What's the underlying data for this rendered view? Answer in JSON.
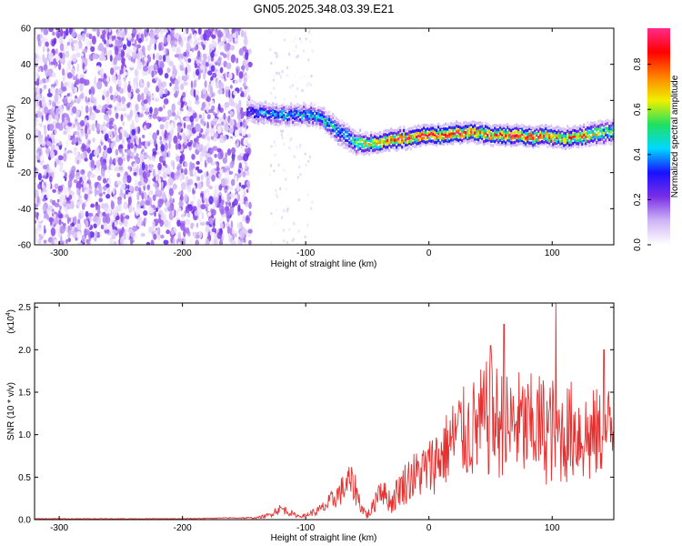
{
  "title": "GN05.2025.348.03.39.E21",
  "chart_data": [
    {
      "type": "heatmap",
      "xlabel": "Height of straight line (km)",
      "ylabel": "Frequency (Hz)",
      "xlim": [
        -320,
        150
      ],
      "ylim": [
        -60,
        60
      ],
      "x_ticks": [
        -300,
        -200,
        -100,
        0,
        100
      ],
      "x_tick_labels": [
        "-300",
        "-200",
        "-100",
        "0",
        "100"
      ],
      "y_ticks": [
        -60,
        -40,
        -20,
        0,
        20,
        40,
        60
      ],
      "y_tick_labels": [
        "-60",
        "-40",
        "-20",
        "0",
        "20",
        "40",
        "60"
      ],
      "colorbar": {
        "label": "Normalized spectral amplitude",
        "range": [
          0,
          0.96
        ],
        "ticks": [
          0,
          0.2,
          0.4,
          0.6,
          0.8
        ],
        "tick_labels": [
          "0.0",
          "0.2",
          "0.4",
          "0.6",
          "0.8"
        ],
        "colormap": [
          "#ffffff",
          "#cfb5f5",
          "#7a2ee6",
          "#1a10ff",
          "#00d8ff",
          "#20e060",
          "#f0f000",
          "#ff8000",
          "#ff0000",
          "#ff2a8a"
        ]
      },
      "noise_region_x": [
        -320,
        -145
      ],
      "noise_amplitude": 0.2,
      "ridge": {
        "x": [
          -148,
          -140,
          -130,
          -120,
          -110,
          -100,
          -90,
          -80,
          -70,
          -60,
          -50,
          -40,
          -30,
          -20,
          -10,
          0,
          10,
          20,
          30,
          40,
          50,
          60,
          70,
          80,
          90,
          100,
          110,
          120,
          130,
          140,
          150
        ],
        "freq": [
          14,
          13,
          13,
          12,
          12,
          12,
          11,
          6,
          1,
          -3,
          -4,
          -3,
          -2,
          -1,
          0,
          1,
          1,
          2,
          2,
          2,
          1,
          1,
          1,
          0,
          0,
          0,
          -1,
          0,
          1,
          2,
          3
        ],
        "peak_amplitude": [
          0.35,
          0.42,
          0.45,
          0.48,
          0.5,
          0.5,
          0.52,
          0.5,
          0.48,
          0.6,
          0.75,
          0.85,
          0.9,
          0.92,
          0.92,
          0.9,
          0.9,
          0.92,
          0.92,
          0.9,
          0.88,
          0.9,
          0.92,
          0.92,
          0.9,
          0.88,
          0.85,
          0.8,
          0.72,
          0.65,
          0.6
        ],
        "width_hz": [
          6,
          6,
          6,
          6,
          6,
          6,
          6,
          7,
          8,
          7,
          6,
          6,
          6,
          6,
          6,
          6,
          6,
          6,
          6,
          6,
          6,
          6,
          6,
          6,
          6,
          6,
          6,
          6,
          7,
          7,
          7
        ]
      },
      "scatter_column": {
        "x_range": [
          -130,
          -95
        ],
        "amplitude": 0.1
      }
    },
    {
      "type": "line",
      "xlabel": "Height of straight line (km)",
      "ylabel": "SNR (10 * v/v)",
      "multiplier_label": "(x10",
      "multiplier_exponent": "4",
      "multiplier_close": ")",
      "xlim": [
        -320,
        150
      ],
      "ylim": [
        0,
        2.55
      ],
      "x_ticks": [
        -300,
        -200,
        -100,
        0,
        100
      ],
      "x_tick_labels": [
        "-300",
        "-200",
        "-100",
        "0",
        "100"
      ],
      "y_ticks": [
        0,
        0.5,
        1.0,
        1.5,
        2.0,
        2.5
      ],
      "y_tick_labels": [
        "0.0",
        "0.5",
        "1.0",
        "1.5",
        "2.0",
        "2.5"
      ],
      "color": "#e53030",
      "series": [
        {
          "x": [
            -320,
            -280,
            -240,
            -200,
            -160,
            -140,
            -130,
            -125,
            -120,
            -115,
            -110,
            -105,
            -100,
            -95,
            -90,
            -85,
            -80,
            -75,
            -70,
            -65,
            -60,
            -55,
            -50,
            -45,
            -40,
            -35,
            -30,
            -25,
            -20,
            -15,
            -10,
            -5,
            0,
            5,
            10,
            15,
            20,
            25,
            30,
            35,
            40,
            45,
            50,
            55,
            60,
            65,
            70,
            75,
            80,
            85,
            90,
            95,
            100,
            105,
            110,
            115,
            120,
            125,
            130,
            135,
            140,
            145,
            150
          ],
          "values": [
            0.01,
            0.01,
            0.01,
            0.01,
            0.02,
            0.02,
            0.05,
            0.1,
            0.13,
            0.1,
            0.06,
            0.04,
            0.05,
            0.08,
            0.1,
            0.15,
            0.2,
            0.28,
            0.35,
            0.45,
            0.38,
            0.15,
            0.05,
            0.15,
            0.4,
            0.28,
            0.2,
            0.35,
            0.42,
            0.5,
            0.52,
            0.58,
            0.6,
            0.7,
            0.75,
            0.85,
            0.95,
            1.05,
            1.0,
            1.05,
            1.1,
            1.15,
            1.2,
            1.15,
            1.1,
            1.05,
            1.15,
            1.1,
            1.05,
            1.1,
            1.1,
            1.05,
            1.05,
            1.0,
            1.0,
            1.05,
            1.05,
            1.0,
            0.95,
            1.0,
            1.0,
            1.05,
            1.05
          ],
          "noise_amplitude": [
            0.004,
            0.004,
            0.004,
            0.004,
            0.006,
            0.01,
            0.03,
            0.05,
            0.06,
            0.05,
            0.03,
            0.02,
            0.02,
            0.04,
            0.06,
            0.08,
            0.12,
            0.14,
            0.18,
            0.2,
            0.2,
            0.08,
            0.05,
            0.1,
            0.2,
            0.15,
            0.15,
            0.2,
            0.25,
            0.3,
            0.3,
            0.32,
            0.35,
            0.4,
            0.4,
            0.45,
            0.5,
            0.55,
            0.55,
            0.6,
            0.65,
            0.7,
            0.72,
            0.7,
            0.68,
            0.65,
            0.65,
            0.65,
            0.65,
            0.65,
            0.65,
            0.65,
            0.65,
            0.6,
            0.6,
            0.6,
            0.6,
            0.6,
            0.6,
            0.55,
            0.55,
            0.55,
            0.55
          ],
          "peaks": [
            [
              50,
              2.05
            ],
            [
              61,
              2.3
            ],
            [
              103,
              2.55
            ],
            [
              142,
              2.0
            ]
          ]
        }
      ]
    }
  ]
}
